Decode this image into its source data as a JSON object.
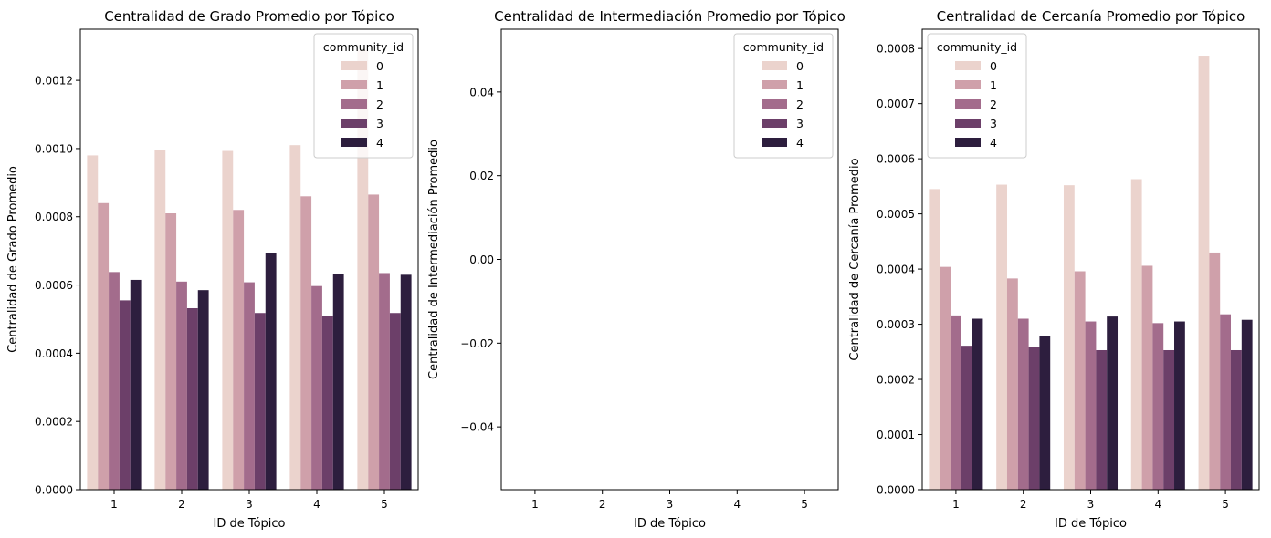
{
  "chart_data": [
    {
      "type": "bar",
      "title": "Centralidad de Grado Promedio por Tópico",
      "xlabel": "ID de Tópico",
      "ylabel": "Centralidad de Grado Promedio",
      "categories": [
        "1",
        "2",
        "3",
        "4",
        "5"
      ],
      "ylim": [
        0,
        0.00135
      ],
      "yticks": [
        "0.0000",
        "0.0002",
        "0.0004",
        "0.0006",
        "0.0008",
        "0.0010",
        "0.0012"
      ],
      "legend": {
        "title": "community_id",
        "position": "upper right"
      },
      "series": [
        {
          "name": "0",
          "values": [
            0.00098,
            0.000995,
            0.000993,
            0.00101,
            0.00129
          ]
        },
        {
          "name": "1",
          "values": [
            0.00084,
            0.00081,
            0.00082,
            0.00086,
            0.000865
          ]
        },
        {
          "name": "2",
          "values": [
            0.000638,
            0.00061,
            0.000608,
            0.000597,
            0.000635
          ]
        },
        {
          "name": "3",
          "values": [
            0.000555,
            0.000532,
            0.000518,
            0.00051,
            0.000518
          ]
        },
        {
          "name": "4",
          "values": [
            0.000615,
            0.000585,
            0.000695,
            0.000632,
            0.00063
          ]
        }
      ]
    },
    {
      "type": "bar",
      "title": "Centralidad de Intermediación Promedio por Tópico",
      "xlabel": "ID de Tópico",
      "ylabel": "Centralidad de Intermediación Promedio",
      "categories": [
        "1",
        "2",
        "3",
        "4",
        "5"
      ],
      "ylim": [
        -0.055,
        0.055
      ],
      "yticks": [
        "−0.04",
        "−0.02",
        "0.00",
        "0.02",
        "0.04"
      ],
      "legend": {
        "title": "community_id",
        "position": "upper right"
      },
      "series": [
        {
          "name": "0",
          "values": [
            0,
            0,
            0,
            0,
            0
          ]
        },
        {
          "name": "1",
          "values": [
            0,
            0,
            0,
            0,
            0
          ]
        },
        {
          "name": "2",
          "values": [
            0,
            0,
            0,
            0,
            0
          ]
        },
        {
          "name": "3",
          "values": [
            0,
            0,
            0,
            0,
            0
          ]
        },
        {
          "name": "4",
          "values": [
            0,
            0,
            0,
            0,
            0
          ]
        }
      ]
    },
    {
      "type": "bar",
      "title": "Centralidad de Cercanía Promedio por Tópico",
      "xlabel": "ID de Tópico",
      "ylabel": "Centralidad de Cercanía Promedio",
      "categories": [
        "1",
        "2",
        "3",
        "4",
        "5"
      ],
      "ylim": [
        0,
        0.000835
      ],
      "yticks": [
        "0.0000",
        "0.0001",
        "0.0002",
        "0.0003",
        "0.0004",
        "0.0005",
        "0.0006",
        "0.0007",
        "0.0008"
      ],
      "legend": {
        "title": "community_id",
        "position": "upper left"
      },
      "series": [
        {
          "name": "0",
          "values": [
            0.000545,
            0.000553,
            0.000552,
            0.000563,
            0.000787
          ]
        },
        {
          "name": "1",
          "values": [
            0.000404,
            0.000383,
            0.000396,
            0.000406,
            0.00043
          ]
        },
        {
          "name": "2",
          "values": [
            0.000316,
            0.00031,
            0.000305,
            0.000302,
            0.000318
          ]
        },
        {
          "name": "3",
          "values": [
            0.000261,
            0.000258,
            0.000253,
            0.000253,
            0.000253
          ]
        },
        {
          "name": "4",
          "values": [
            0.00031,
            0.000279,
            0.000314,
            0.000305,
            0.000308
          ]
        }
      ]
    }
  ],
  "colors": {
    "series": [
      "#ebd3cd",
      "#cfa0aa",
      "#a36c8c",
      "#6c3f69",
      "#2d1e3e"
    ],
    "axis": "#000000",
    "background": "#ffffff"
  }
}
